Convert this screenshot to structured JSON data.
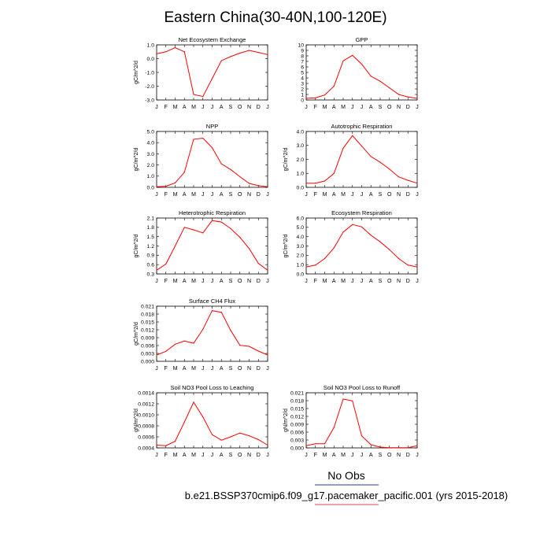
{
  "figure": {
    "title": "Eastern China(30-40N,100-120E)",
    "legend_label": "No Obs",
    "caption": "b.e21.BSSP370cmip6.f09_g17.pacemaker_pacific.001 (yrs 2015-2018)",
    "line_color": "#ff0000",
    "legend_line_color": "#2a3a8f",
    "caption_underline_color": "#d8475f"
  },
  "chart_data": [
    {
      "type": "line",
      "title": "Net Ecosystem Exchange",
      "ylabel": "gC/m^2/d",
      "categories": [
        "J",
        "F",
        "M",
        "A",
        "M",
        "J",
        "J",
        "A",
        "S",
        "O",
        "N",
        "D",
        "J"
      ],
      "x": [
        0,
        1,
        2,
        3,
        4,
        5,
        6,
        7,
        8,
        9,
        10,
        11,
        12
      ],
      "y": [
        0.35,
        0.5,
        0.8,
        0.5,
        -2.6,
        -2.75,
        -1.45,
        -0.15,
        0.15,
        0.4,
        0.6,
        0.45,
        0.3
      ],
      "ylim": [
        -3.0,
        1.0
      ],
      "yticks": [
        "1.0",
        "0.0",
        "-1.0",
        "-2.0",
        "-3.0"
      ],
      "ytick_values": [
        1.0,
        0.0,
        -1.0,
        -2.0,
        -3.0
      ]
    },
    {
      "type": "line",
      "title": "GPP",
      "ylabel": "",
      "categories": [
        "J",
        "F",
        "M",
        "A",
        "M",
        "J",
        "J",
        "A",
        "S",
        "O",
        "N",
        "D",
        "J"
      ],
      "x": [
        0,
        1,
        2,
        3,
        4,
        5,
        6,
        7,
        8,
        9,
        10,
        11,
        12
      ],
      "y": [
        0.3,
        0.4,
        0.9,
        2.5,
        7.1,
        8.1,
        6.5,
        4.3,
        3.4,
        2.2,
        1.0,
        0.55,
        0.3
      ],
      "ylim": [
        0,
        10
      ],
      "yticks": [
        "10",
        "9",
        "8",
        "7",
        "6",
        "5",
        "4",
        "3",
        "2",
        "1",
        "0"
      ],
      "ytick_values": [
        10,
        9,
        8,
        7,
        6,
        5,
        4,
        3,
        2,
        1,
        0
      ]
    },
    {
      "type": "line",
      "title": "NPP",
      "ylabel": "gC/m^2/d",
      "categories": [
        "J",
        "F",
        "M",
        "A",
        "M",
        "J",
        "J",
        "A",
        "S",
        "O",
        "N",
        "D",
        "J"
      ],
      "x": [
        0,
        1,
        2,
        3,
        4,
        5,
        6,
        7,
        8,
        9,
        10,
        11,
        12
      ],
      "y": [
        0.05,
        0.1,
        0.4,
        1.35,
        4.3,
        4.4,
        3.55,
        2.1,
        1.6,
        0.95,
        0.35,
        0.15,
        0.05
      ],
      "ylim": [
        0.0,
        5.0
      ],
      "yticks": [
        "5.0",
        "4.0",
        "3.0",
        "2.0",
        "1.0",
        "0.0"
      ],
      "ytick_values": [
        5.0,
        4.0,
        3.0,
        2.0,
        1.0,
        0.0
      ]
    },
    {
      "type": "line",
      "title": "Autotrophic Respiration",
      "ylabel": "gC/m^2/d",
      "categories": [
        "J",
        "F",
        "M",
        "A",
        "M",
        "J",
        "J",
        "A",
        "S",
        "O",
        "N",
        "D",
        "J"
      ],
      "x": [
        0,
        1,
        2,
        3,
        4,
        5,
        6,
        7,
        8,
        9,
        10,
        11,
        12
      ],
      "y": [
        0.3,
        0.3,
        0.45,
        1.0,
        2.8,
        3.7,
        2.95,
        2.2,
        1.8,
        1.3,
        0.75,
        0.5,
        0.3
      ],
      "ylim": [
        0.0,
        4.0
      ],
      "yticks": [
        "4.0",
        "3.0",
        "2.0",
        "1.0",
        "0.0"
      ],
      "ytick_values": [
        4.0,
        3.0,
        2.0,
        1.0,
        0.0
      ]
    },
    {
      "type": "line",
      "title": "Heterotrophic Respiration",
      "ylabel": "gC/m^2/d",
      "categories": [
        "J",
        "F",
        "M",
        "A",
        "M",
        "J",
        "J",
        "A",
        "S",
        "O",
        "N",
        "D",
        "J"
      ],
      "x": [
        0,
        1,
        2,
        3,
        4,
        5,
        6,
        7,
        8,
        9,
        10,
        11,
        12
      ],
      "y": [
        0.42,
        0.62,
        1.2,
        1.8,
        1.72,
        1.62,
        2.02,
        1.97,
        1.76,
        1.48,
        1.12,
        0.64,
        0.42
      ],
      "ylim": [
        0.3,
        2.1
      ],
      "yticks": [
        "2.1",
        "1.8",
        "1.5",
        "1.2",
        "0.9",
        "0.6",
        "0.3"
      ],
      "ytick_values": [
        2.1,
        1.8,
        1.5,
        1.2,
        0.9,
        0.6,
        0.3
      ]
    },
    {
      "type": "line",
      "title": "Ecosystem Respiration",
      "ylabel": "gC/m^2/d",
      "categories": [
        "J",
        "F",
        "M",
        "A",
        "M",
        "J",
        "J",
        "A",
        "S",
        "O",
        "N",
        "D",
        "J"
      ],
      "x": [
        0,
        1,
        2,
        3,
        4,
        5,
        6,
        7,
        8,
        9,
        10,
        11,
        12
      ],
      "y": [
        0.75,
        0.95,
        1.65,
        2.8,
        4.5,
        5.3,
        5.05,
        4.15,
        3.45,
        2.6,
        1.65,
        0.95,
        0.75
      ],
      "ylim": [
        0.0,
        6.0
      ],
      "yticks": [
        "6.0",
        "5.0",
        "4.0",
        "3.0",
        "2.0",
        "1.0",
        "0.0"
      ],
      "ytick_values": [
        6.0,
        5.0,
        4.0,
        3.0,
        2.0,
        1.0,
        0.0
      ]
    },
    {
      "type": "line",
      "title": "Surface CH4 Flux",
      "ylabel": "gC/m^2/d",
      "categories": [
        "J",
        "F",
        "M",
        "A",
        "M",
        "J",
        "J",
        "A",
        "S",
        "O",
        "N",
        "D",
        "J"
      ],
      "x": [
        0,
        1,
        2,
        3,
        4,
        5,
        6,
        7,
        8,
        9,
        10,
        11,
        12
      ],
      "y": [
        0.0024,
        0.0038,
        0.0065,
        0.0077,
        0.0069,
        0.0122,
        0.0193,
        0.0187,
        0.0118,
        0.0061,
        0.0057,
        0.0039,
        0.0024
      ],
      "ylim": [
        0.0,
        0.021
      ],
      "yticks": [
        "0.021",
        "0.018",
        "0.015",
        "0.012",
        "0.009",
        "0.006",
        "0.003",
        "0.000"
      ],
      "ytick_values": [
        0.021,
        0.018,
        0.015,
        0.012,
        0.009,
        0.006,
        0.003,
        0.0
      ]
    },
    {
      "type": "line",
      "title": "Soil NO3 Pool Loss to Leaching",
      "ylabel": "gN/m^2/d",
      "categories": [
        "J",
        "F",
        "M",
        "A",
        "M",
        "J",
        "J",
        "A",
        "S",
        "O",
        "N",
        "D",
        "J"
      ],
      "x": [
        0,
        1,
        2,
        3,
        4,
        5,
        6,
        7,
        8,
        9,
        10,
        11,
        12
      ],
      "y": [
        0.00045,
        0.00044,
        0.00052,
        0.00087,
        0.00123,
        0.00096,
        0.00064,
        0.00054,
        0.0006,
        0.00067,
        0.00062,
        0.00055,
        0.00045
      ],
      "ylim": [
        0.0004,
        0.0014
      ],
      "yticks": [
        "0.0014",
        "0.0012",
        "0.0010",
        "0.0008",
        "0.0006",
        "0.0004"
      ],
      "ytick_values": [
        0.0014,
        0.0012,
        0.001,
        0.0008,
        0.0006,
        0.0004
      ]
    },
    {
      "type": "line",
      "title": "Soil NO3 Pool Loss to Runoff",
      "ylabel": "gN/m^2/d",
      "categories": [
        "J",
        "F",
        "M",
        "A",
        "M",
        "J",
        "J",
        "A",
        "S",
        "O",
        "N",
        "D",
        "J"
      ],
      "x": [
        0,
        1,
        2,
        3,
        4,
        5,
        6,
        7,
        8,
        9,
        10,
        11,
        12
      ],
      "y": [
        0.0008,
        0.0016,
        0.0016,
        0.0078,
        0.0186,
        0.0179,
        0.0046,
        0.0012,
        0.0003,
        0.0001,
        0.0001,
        0.0001,
        0.0008
      ],
      "ylim": [
        0.0,
        0.021
      ],
      "yticks": [
        "0.021",
        "0.018",
        "0.015",
        "0.012",
        "0.009",
        "0.006",
        "0.003",
        "0.000"
      ],
      "ytick_values": [
        0.021,
        0.018,
        0.015,
        0.012,
        0.009,
        0.006,
        0.003,
        0.0
      ]
    }
  ]
}
